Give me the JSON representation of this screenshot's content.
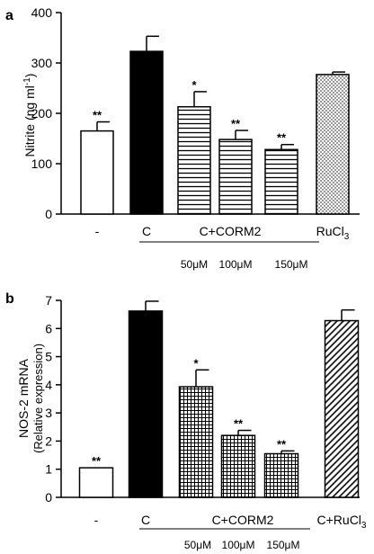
{
  "chart_data": [
    {
      "panel_label": "a",
      "type": "bar",
      "ylabel_main": "Nitrite (ng ml",
      "ylabel_sup": "-1",
      "ylabel_close": ")",
      "ylim": [
        0,
        400
      ],
      "yticks": [
        "0",
        "100",
        "200",
        "300",
        "400"
      ],
      "categories": [
        "-",
        "C",
        "",
        "",
        "",
        "RuCl"
      ],
      "category_sub": [
        "",
        "",
        "",
        "",
        "",
        "3"
      ],
      "values": [
        165,
        323,
        213,
        148,
        128,
        277
      ],
      "errors": [
        18,
        30,
        30,
        18,
        10,
        5
      ],
      "significance": [
        "**",
        "",
        "*",
        "**",
        "**",
        ""
      ],
      "patterns": [
        "white",
        "black",
        "hlines",
        "hlines",
        "hlines",
        "dots"
      ],
      "group_label": "C+CORM2",
      "group_sublabels": [
        "50μM",
        "100μM",
        "150μM"
      ]
    },
    {
      "panel_label": "b",
      "type": "bar",
      "ylabel_line1": "NOS-2 mRNA",
      "ylabel_line2": "(Relative expression)",
      "ylim": [
        0,
        7
      ],
      "yticks": [
        "0",
        "1",
        "2",
        "3",
        "4",
        "5",
        "6",
        "7"
      ],
      "categories": [
        "-",
        "C",
        "",
        "",
        "",
        "C+RuCl"
      ],
      "category_sub": [
        "",
        "",
        "",
        "",
        "",
        "3"
      ],
      "values": [
        1.05,
        6.62,
        3.93,
        2.2,
        1.55,
        6.28
      ],
      "errors": [
        0,
        0.35,
        0.6,
        0.18,
        0.1,
        0.38
      ],
      "significance": [
        "**",
        "",
        "*",
        "**",
        "**",
        ""
      ],
      "patterns": [
        "white",
        "black",
        "grid",
        "grid",
        "grid",
        "diag"
      ],
      "group_label": "C+CORM2",
      "group_sublabels": [
        "50μM",
        "100μM",
        "150μM"
      ]
    }
  ]
}
